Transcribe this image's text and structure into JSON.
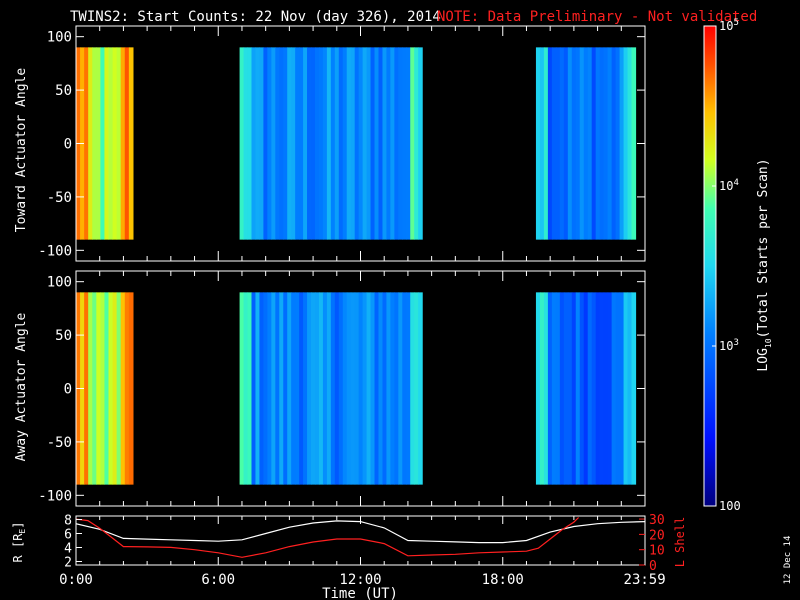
{
  "header": {
    "title": "TWINS2: Start Counts: 22 Nov (day 326), 2014",
    "note": "NOTE: Data Preliminary - Not validated"
  },
  "colors": {
    "background": "#000000",
    "note": "#ff2020",
    "r_line": "#ffffff",
    "lshell_line": "#ff2020"
  },
  "stamp": "12 Dec 14",
  "chart_data": [
    {
      "type": "heatmap",
      "name": "toward",
      "ylabel": "Toward Actuator Angle",
      "ylim": [
        -110,
        110
      ],
      "yticks": [
        100,
        50,
        0,
        -50,
        -100
      ],
      "ytick_labels": [
        "100",
        "50",
        "0",
        "-50",
        "-100"
      ],
      "xlim": [
        0,
        24
      ],
      "angle_range": [
        -90,
        90
      ],
      "data_intervals": [
        {
          "start": 0.0,
          "end": 2.4,
          "mean_log_counts": 4.0
        },
        {
          "start": 6.9,
          "end": 14.6,
          "mean_log_counts": 3.1
        },
        {
          "start": 19.4,
          "end": 23.6,
          "mean_log_counts": 3.0
        }
      ]
    },
    {
      "type": "heatmap",
      "name": "away",
      "ylabel": "Away Actuator Angle",
      "ylim": [
        -110,
        110
      ],
      "yticks": [
        100,
        50,
        0,
        -50,
        -100
      ],
      "ytick_labels": [
        "100",
        "50",
        "0",
        "-50",
        "-100"
      ],
      "xlim": [
        0,
        24
      ],
      "angle_range": [
        -90,
        90
      ],
      "data_intervals": [
        {
          "start": 0.0,
          "end": 2.4,
          "mean_log_counts": 4.0
        },
        {
          "start": 6.9,
          "end": 14.6,
          "mean_log_counts": 3.1
        },
        {
          "start": 19.4,
          "end": 23.6,
          "mean_log_counts": 2.9
        }
      ]
    },
    {
      "type": "line",
      "name": "orbit",
      "xlabel": "Time (UT)",
      "xticks": [
        0,
        6,
        12,
        18,
        23.9833
      ],
      "xtick_labels": [
        "0:00",
        "6:00",
        "12:00",
        "18:00",
        "23:59"
      ],
      "xlim": [
        0,
        24
      ],
      "ylabel_left": "R [R",
      "ylabel_left_sub": "E",
      "ylabel_left_end": "]",
      "ylim_left": [
        1.5,
        8.5
      ],
      "yticks_left": [
        2,
        4,
        6,
        8
      ],
      "ylabel_right": "L Shell",
      "ylim_right": [
        0,
        32
      ],
      "yticks_right": [
        0,
        10,
        20,
        30
      ],
      "series": [
        {
          "axis": "left",
          "x": [
            0,
            1,
            2,
            3,
            4,
            5,
            6,
            7,
            8,
            9,
            10,
            11,
            12,
            13,
            14,
            15,
            16,
            17,
            18,
            19,
            20,
            21,
            22,
            23,
            24
          ],
          "y": [
            7.4,
            6.6,
            5.3,
            5.2,
            5.1,
            5.0,
            4.9,
            5.1,
            6.0,
            6.9,
            7.5,
            7.8,
            7.7,
            6.8,
            5.0,
            4.9,
            4.8,
            4.7,
            4.7,
            5.0,
            6.2,
            7.0,
            7.4,
            7.6,
            7.7
          ]
        },
        {
          "axis": "right",
          "x": [
            0,
            0.5,
            1,
            1.5,
            2,
            3,
            4,
            5,
            6,
            7,
            8,
            9,
            10,
            11,
            12,
            13,
            14,
            15,
            16,
            17,
            18,
            19,
            19.5,
            20,
            20.5,
            21,
            21.2
          ],
          "y": [
            30,
            29,
            24,
            18,
            12,
            11.8,
            11.5,
            10,
            8,
            5,
            8,
            12,
            15,
            17,
            17,
            14,
            6,
            6.5,
            7,
            8,
            8.5,
            9,
            11,
            17,
            23,
            28,
            31
          ]
        }
      ]
    },
    {
      "type": "heatmap",
      "name": "colorbar",
      "ylabel": "LOG",
      "ylabel_sub": "10",
      "ylabel_end": "(Total Starts per Scan)",
      "scale": "log",
      "range": [
        100,
        100000
      ],
      "tick_values": [
        100,
        1000,
        10000,
        100000
      ],
      "tick_labels": [
        {
          "base": "100",
          "exp": ""
        },
        {
          "base": "10",
          "exp": "3"
        },
        {
          "base": "10",
          "exp": "4"
        },
        {
          "base": "10",
          "exp": "5"
        }
      ]
    }
  ]
}
